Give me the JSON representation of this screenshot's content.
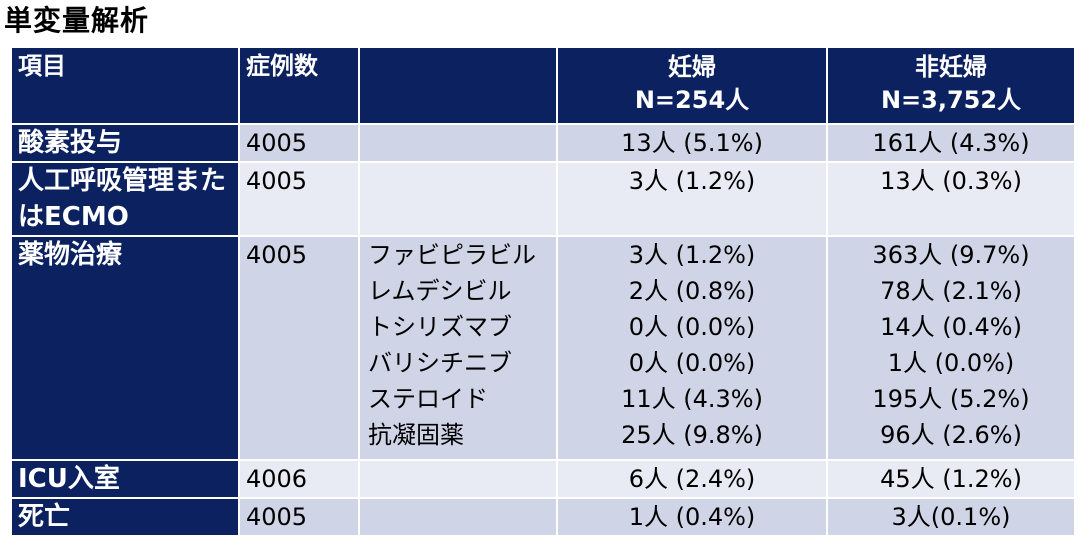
{
  "title": "単変量解析",
  "header": {
    "item": "項目",
    "cases": "症例数",
    "drug": "",
    "pregnant": "妊婦",
    "pregnant_n": "N=254人",
    "nonpregnant": "非妊婦",
    "nonpregnant_n": "N=3,752人"
  },
  "rows": [
    {
      "item": "酸素投与",
      "cases": "4005",
      "drugs": [
        ""
      ],
      "pregnant": [
        "13人 (5.1%)"
      ],
      "nonpregnant": [
        "161人 (4.3%)"
      ]
    },
    {
      "item": "人工呼吸管理またはECMO",
      "cases": "4005",
      "drugs": [
        ""
      ],
      "pregnant": [
        "3人 (1.2%)"
      ],
      "nonpregnant": [
        "13人 (0.3%)"
      ]
    },
    {
      "item": "薬物治療",
      "cases": "4005",
      "drugs": [
        "ファビピラビル",
        "レムデシビル",
        "トシリズマブ",
        "バリシチニブ",
        "ステロイド",
        "抗凝固薬"
      ],
      "pregnant": [
        "3人 (1.2%)",
        "2人 (0.8%)",
        "0人 (0.0%)",
        "0人 (0.0%)",
        "11人 (4.3%)",
        "25人 (9.8%)"
      ],
      "nonpregnant": [
        "363人 (9.7%)",
        "78人 (2.1%)",
        "14人 (0.4%)",
        "1人 (0.0%)",
        "195人 (5.2%)",
        "96人 (2.6%)"
      ]
    },
    {
      "item": "ICU入室",
      "cases": "4006",
      "drugs": [
        ""
      ],
      "pregnant": [
        "6人 (2.4%)"
      ],
      "nonpregnant": [
        "45人 (1.2%)"
      ]
    },
    {
      "item": "死亡",
      "cases": "4005",
      "drugs": [
        ""
      ],
      "pregnant": [
        "1人 (0.4%)"
      ],
      "nonpregnant": [
        "3人(0.1%)"
      ]
    }
  ]
}
